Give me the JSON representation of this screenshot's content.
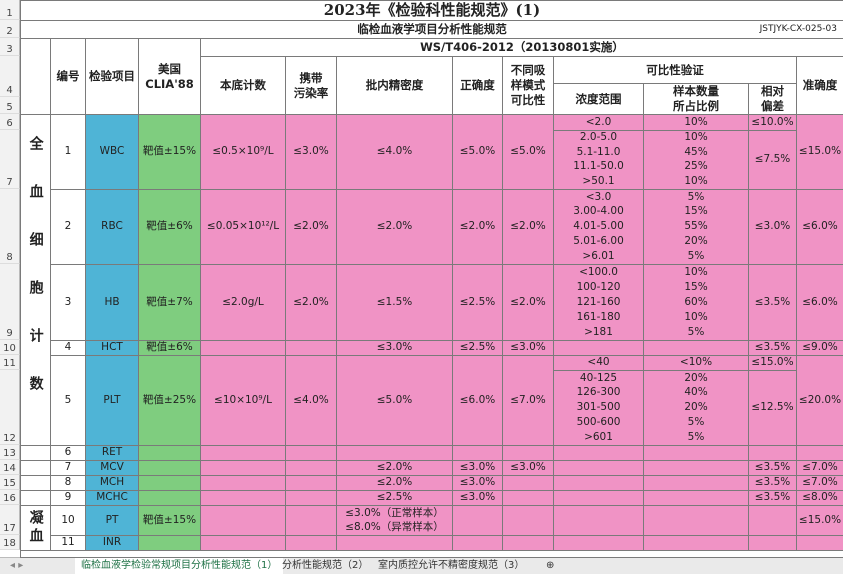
{
  "title": "2023年《检验科性能规范》(1)",
  "subtitle": "临检血液学项目分析性能规范",
  "doc_code": "JSTJYK-CX-025-03",
  "standard": "WS/T406-2012（20130801实施）",
  "group_header": "可比性验证",
  "headers": [
    "编号",
    "检验项目",
    "美国\nCLIA'88",
    "本底计数",
    "携带\n污染率",
    "批内精密度",
    "正确度",
    "不同吸\n样模式\n可比性",
    "浓度范围",
    "样本数量\n所占比例",
    "相对\n偏差",
    "准确度"
  ],
  "groups": [
    "全血细胞计数",
    "凝血"
  ],
  "rows": [
    {
      "no": 1,
      "item": "WBC",
      "clia": "靶值±15%",
      "background": "≤0.5×10⁹/L",
      "carryover": "≤3.0%",
      "precision": "≤4.0%",
      "trueness": "≤5.0%",
      "sampling": "≤5.0%",
      "ranges": [
        "<2.0",
        "2.0-5.0",
        "5.1-11.0",
        "11.1-50.0",
        ">50.1"
      ],
      "proportions": [
        "10%",
        "10%",
        "45%",
        "25%",
        "10%"
      ],
      "bias": [
        "≤10.0%",
        "≤7.5%"
      ],
      "accuracy": "≤15.0%"
    },
    {
      "no": 2,
      "item": "RBC",
      "clia": "靶值±6%",
      "background": "≤0.05×10¹²/L",
      "carryover": "≤2.0%",
      "precision": "≤2.0%",
      "trueness": "≤2.0%",
      "sampling": "≤2.0%",
      "ranges": [
        "<3.0",
        "3.00-4.00",
        "4.01-5.00",
        "5.01-6.00",
        ">6.01"
      ],
      "proportions": [
        "5%",
        "15%",
        "55%",
        "20%",
        "5%"
      ],
      "bias": "≤3.0%",
      "accuracy": "≤6.0%"
    },
    {
      "no": 3,
      "item": "HB",
      "clia": "靶值±7%",
      "background": "≤2.0g/L",
      "carryover": "≤2.0%",
      "precision": "≤1.5%",
      "trueness": "≤2.5%",
      "sampling": "≤2.0%",
      "ranges": [
        "<100.0",
        "100-120",
        "121-160",
        "161-180",
        ">181"
      ],
      "proportions": [
        "10%",
        "15%",
        "60%",
        "10%",
        "5%"
      ],
      "bias": "≤3.5%",
      "accuracy": "≤6.0%"
    },
    {
      "no": 4,
      "item": "HCT",
      "clia": "靶值±6%",
      "background": null,
      "carryover": null,
      "precision": "≤3.0%",
      "trueness": "≤2.5%",
      "sampling": "≤3.0%",
      "ranges": null,
      "proportions": null,
      "bias": "≤3.5%",
      "accuracy": "≤9.0%"
    },
    {
      "no": 5,
      "item": "PLT",
      "clia": "靶值±25%",
      "background": "≤10×10⁹/L",
      "carryover": "≤4.0%",
      "precision": "≤5.0%",
      "trueness": "≤6.0%",
      "sampling": "≤7.0%",
      "ranges": [
        "<40",
        "40-125",
        "126-300",
        "301-500",
        "500-600",
        ">601"
      ],
      "proportions": [
        "<10%",
        "20%",
        "40%",
        "20%",
        "5%",
        "5%"
      ],
      "bias": [
        "≤15.0%",
        "≤12.5%"
      ],
      "accuracy": "≤20.0%"
    },
    {
      "no": 6,
      "item": "RET",
      "clia": null,
      "background": null,
      "carryover": null,
      "precision": null,
      "trueness": null,
      "sampling": null,
      "ranges": null,
      "proportions": null,
      "bias": null,
      "accuracy": null
    },
    {
      "no": 7,
      "item": "MCV",
      "clia": null,
      "background": null,
      "carryover": null,
      "precision": "≤2.0%",
      "trueness": "≤3.0%",
      "sampling": "≤3.0%",
      "ranges": null,
      "proportions": null,
      "bias": "≤3.5%",
      "accuracy": "≤7.0%"
    },
    {
      "no": 8,
      "item": "MCH",
      "clia": null,
      "background": null,
      "carryover": null,
      "precision": "≤2.0%",
      "trueness": "≤3.0%",
      "sampling": null,
      "ranges": null,
      "proportions": null,
      "bias": "≤3.5%",
      "accuracy": "≤7.0%"
    },
    {
      "no": 9,
      "item": "MCHC",
      "clia": null,
      "background": null,
      "carryover": null,
      "precision": "≤2.5%",
      "trueness": "≤3.0%",
      "sampling": null,
      "ranges": null,
      "proportions": null,
      "bias": "≤3.5%",
      "accuracy": "≤8.0%"
    },
    {
      "no": 10,
      "item": "PT",
      "clia": "靶值±15%",
      "background": null,
      "carryover": null,
      "precision": "≤3.0%（正常样本）\n≤8.0%（异常样本）",
      "trueness": null,
      "sampling": null,
      "ranges": null,
      "proportions": null,
      "bias": null,
      "accuracy": "≤15.0%"
    },
    {
      "no": 11,
      "item": "INR",
      "clia": null,
      "background": null,
      "carryover": null,
      "precision": null,
      "trueness": null,
      "sampling": null,
      "ranges": null,
      "proportions": null,
      "bias": null,
      "accuracy": null
    }
  ],
  "row_numbers": [
    1,
    2,
    3,
    4,
    5,
    6,
    7,
    8,
    9,
    10,
    11,
    12,
    13,
    14,
    15,
    16,
    17,
    18
  ],
  "tabs": [
    "临检血液学检验常规项目分析性能规范（1）",
    "分析性能规范（2）",
    "室内质控允许不精密度规范（3）"
  ]
}
